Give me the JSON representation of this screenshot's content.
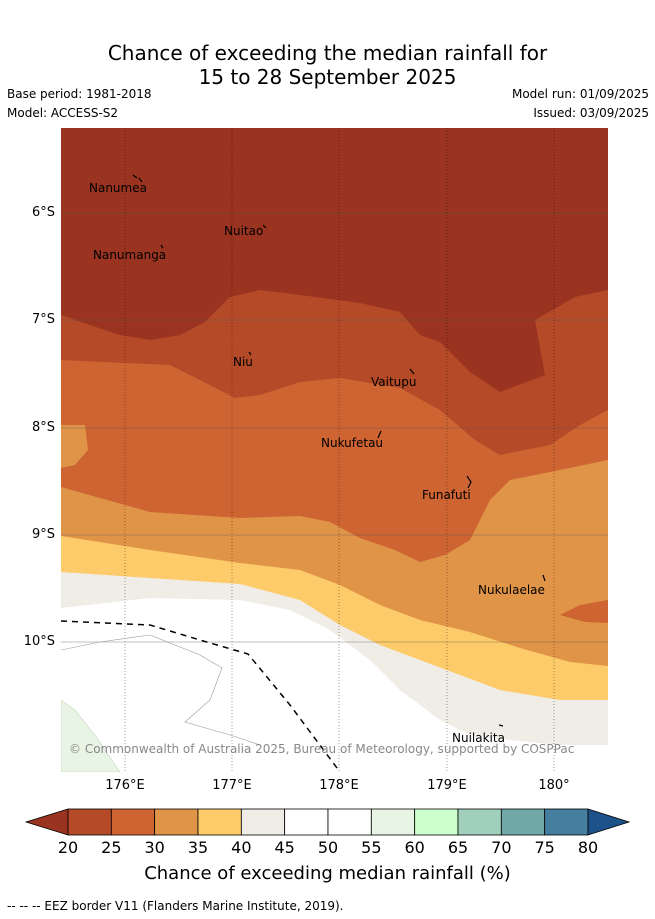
{
  "title_line1": "Chance of exceeding the median rainfall for",
  "title_line2": "15 to 28 September 2025",
  "meta": {
    "base_period": "Base period: 1981-2018",
    "model": "Model: ACCESS-S2",
    "model_run": "Model run: 01/09/2025",
    "issued": "Issued: 03/09/2025"
  },
  "axes": {
    "lat_labels": [
      "6°S",
      "7°S",
      "8°S",
      "9°S",
      "10°S"
    ],
    "lon_labels": [
      "176°E",
      "177°E",
      "178°E",
      "179°E",
      "180°"
    ]
  },
  "places": {
    "nanumea": "Nanumea",
    "nuitao": "Nuitao",
    "nanumanga": "Nanumanga",
    "niu": "Niu",
    "vaitupu": "Vaitupu",
    "nukufetau": "Nukufetau",
    "funafuti": "Funafuti",
    "nukulaelae": "Nukulaelae",
    "nuilakita": "Nuilakita"
  },
  "credit": "© Commonwealth of Australia 2025, Bureau of Meteorology, supported by COSPPac",
  "colorbar": {
    "title": "Chance of exceeding median rainfall (%)",
    "ticks": [
      "20",
      "25",
      "30",
      "35",
      "40",
      "45",
      "50",
      "55",
      "60",
      "65",
      "70",
      "75",
      "80"
    ],
    "colors": [
      "#9a3420",
      "#b44a28",
      "#cd6432",
      "#e09448",
      "#fecb6a",
      "#f0ece6",
      "#ffffff",
      "#ffffff",
      "#e8f5e4",
      "#ccffcc",
      "#a0d0bc",
      "#70a8a8",
      "#457f9f",
      "#1d5189"
    ]
  },
  "footer": "-- -- -- EEZ border V11 (Flanders Marine Institute, 2019)."
}
